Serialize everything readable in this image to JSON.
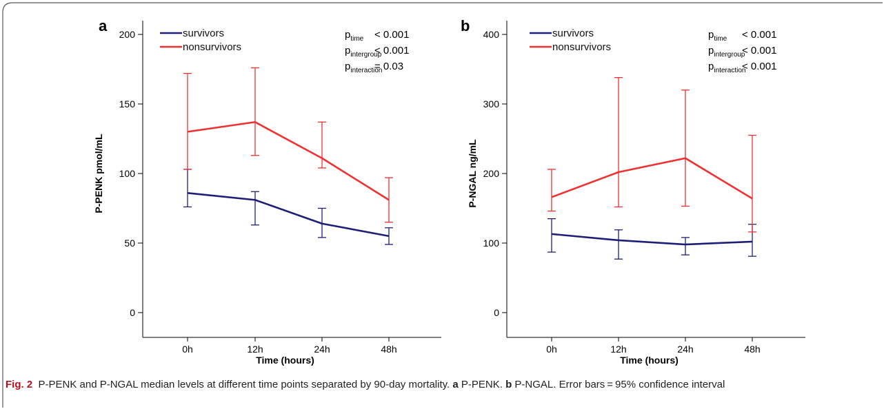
{
  "figure": {
    "fig_label": "Fig. 2",
    "caption_main": "P-PENK and P-NGAL median levels at different time points separated by 90-day mortality.",
    "caption_a_label": "a",
    "caption_a_text": "P-PENK.",
    "caption_b_label": "b",
    "caption_b_text": "P-NGAL. Error bars = 95% confidence interval"
  },
  "colors": {
    "survivors": "#1e1e78",
    "nonsurvivors": "#f03030"
  },
  "chart_data": [
    {
      "type": "line",
      "panel_label": "a",
      "categories": [
        "0h",
        "12h",
        "24h",
        "48h"
      ],
      "xlabel": "Time (hours)",
      "ylabel": "P-PENK pmol/mL",
      "ylim": [
        0,
        200
      ],
      "yticks": [
        "0",
        "50",
        "100",
        "150",
        "200"
      ],
      "series": [
        {
          "name": "survivors",
          "values": [
            86,
            81,
            64,
            55
          ],
          "ci_low": [
            76,
            63,
            54,
            49
          ],
          "ci_high": [
            103,
            87,
            75,
            61
          ]
        },
        {
          "name": "nonsurvivors",
          "values": [
            130,
            137,
            111,
            81
          ],
          "ci_low": [
            103,
            113,
            104,
            65
          ],
          "ci_high": [
            172,
            176,
            137,
            97
          ]
        }
      ],
      "annotations": [
        {
          "p_sub": "time",
          "value": "< 0.001"
        },
        {
          "p_sub": "intergroup",
          "value": "< 0.001"
        },
        {
          "p_sub": "interaction",
          "value": "= 0.03"
        }
      ]
    },
    {
      "type": "line",
      "panel_label": "b",
      "categories": [
        "0h",
        "12h",
        "24h",
        "48h"
      ],
      "xlabel": "Time (hours)",
      "ylabel": "P-NGAL ng/mL",
      "ylim": [
        0,
        400
      ],
      "yticks": [
        "0",
        "100",
        "200",
        "300",
        "400"
      ],
      "series": [
        {
          "name": "survivors",
          "values": [
            113,
            104,
            98,
            102
          ],
          "ci_low": [
            87,
            77,
            83,
            81
          ],
          "ci_high": [
            135,
            119,
            108,
            127
          ]
        },
        {
          "name": "nonsurvivors",
          "values": [
            166,
            202,
            222,
            164
          ],
          "ci_low": [
            146,
            152,
            153,
            116
          ],
          "ci_high": [
            206,
            338,
            320,
            255
          ]
        }
      ],
      "annotations": [
        {
          "p_sub": "time",
          "value": "< 0.001"
        },
        {
          "p_sub": "intergroup",
          "value": "< 0.001"
        },
        {
          "p_sub": "interaction",
          "value": "< 0.001"
        }
      ]
    }
  ]
}
